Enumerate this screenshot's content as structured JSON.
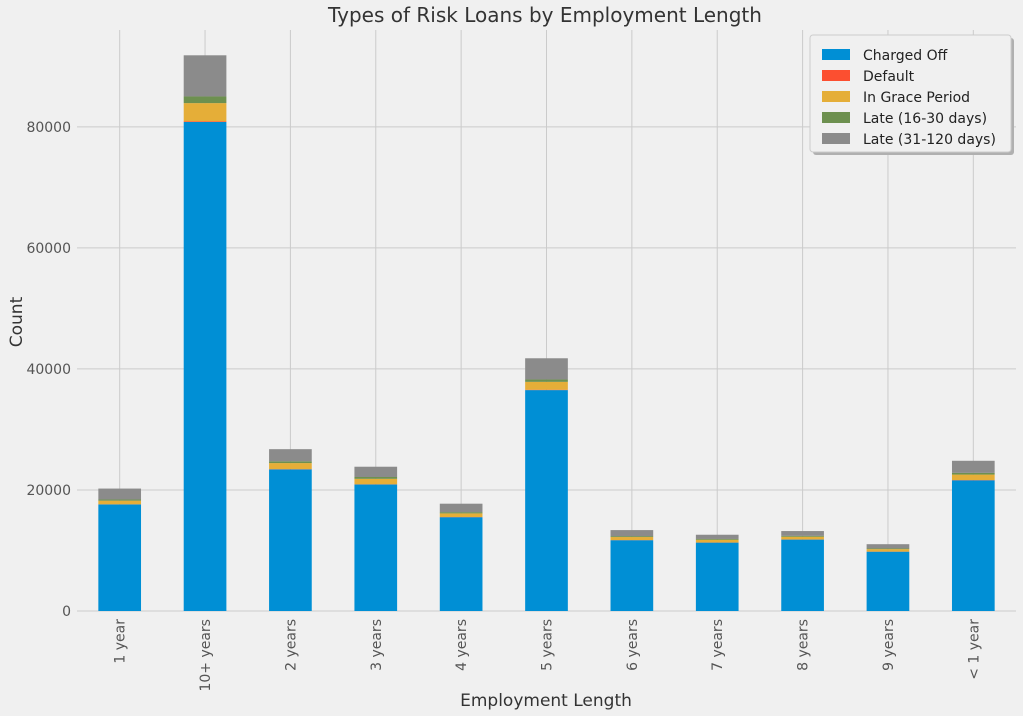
{
  "chart_data": {
    "type": "bar",
    "stacked": true,
    "title": "Types of Risk Loans by Employment Length",
    "xlabel": "Employment Length",
    "ylabel": "Count",
    "ylim": [
      0,
      96000
    ],
    "yticks": [
      0,
      20000,
      40000,
      60000,
      80000
    ],
    "grid": true,
    "legend_position": "top-right",
    "categories": [
      "1 year",
      "10+ years",
      "2 years",
      "3 years",
      "4 years",
      "5 years",
      "6 years",
      "7 years",
      "8 years",
      "9 years",
      "< 1 year"
    ],
    "series": [
      {
        "name": "Charged Off",
        "color": "#008fd5",
        "values": [
          17600,
          80800,
          23400,
          20900,
          15500,
          36500,
          11700,
          11300,
          11800,
          9800,
          21600
        ]
      },
      {
        "name": "Default",
        "color": "#fc4f30",
        "values": [
          30,
          120,
          40,
          40,
          30,
          60,
          20,
          20,
          20,
          20,
          40
        ]
      },
      {
        "name": "In Grace Period",
        "color": "#e5ae38",
        "values": [
          600,
          3000,
          1000,
          900,
          600,
          1300,
          500,
          450,
          450,
          400,
          900
        ]
      },
      {
        "name": "Late (16-30 days)",
        "color": "#6d904f",
        "values": [
          200,
          1100,
          300,
          300,
          200,
          400,
          150,
          130,
          140,
          120,
          280
        ]
      },
      {
        "name": "Late (31-120 days)",
        "color": "#8b8b8b",
        "values": [
          1800,
          6800,
          2000,
          1700,
          1400,
          3500,
          1000,
          700,
          800,
          700,
          2000
        ]
      }
    ]
  }
}
